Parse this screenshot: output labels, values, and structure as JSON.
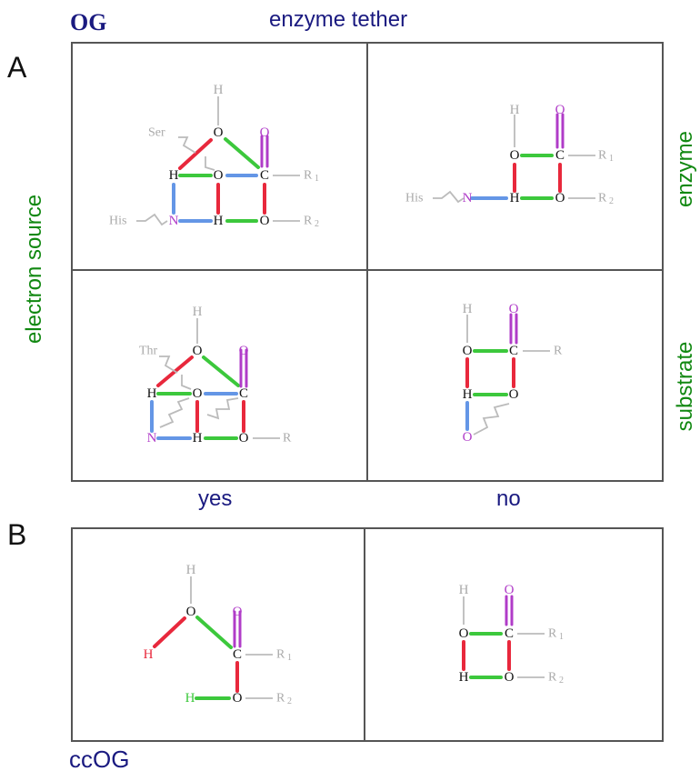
{
  "labels": {
    "og": "OG",
    "enzyme_tether": "enzyme tether",
    "panel_a": "A",
    "panel_b": "B",
    "electron_source": "electron source",
    "enzyme": "enzyme",
    "substrate": "substrate",
    "yes": "yes",
    "no": "no",
    "ccog": "ccOG"
  },
  "atoms": {
    "H": "H",
    "O": "O",
    "C": "C",
    "N": "N",
    "R": "R",
    "R1_base": "R",
    "R2_base": "R",
    "sub1": "1",
    "sub2": "2",
    "ser": "Ser",
    "thr": "Thr",
    "his": "His"
  },
  "colors": {
    "navy": "#1a1a80",
    "green_text": "#118811",
    "bond_red": "#e8283c",
    "bond_green": "#3cc83c",
    "bond_blue": "#6496e6",
    "bond_purple": "#b03cc8",
    "bond_grey": "#bbbbbb",
    "border": "#555555"
  }
}
